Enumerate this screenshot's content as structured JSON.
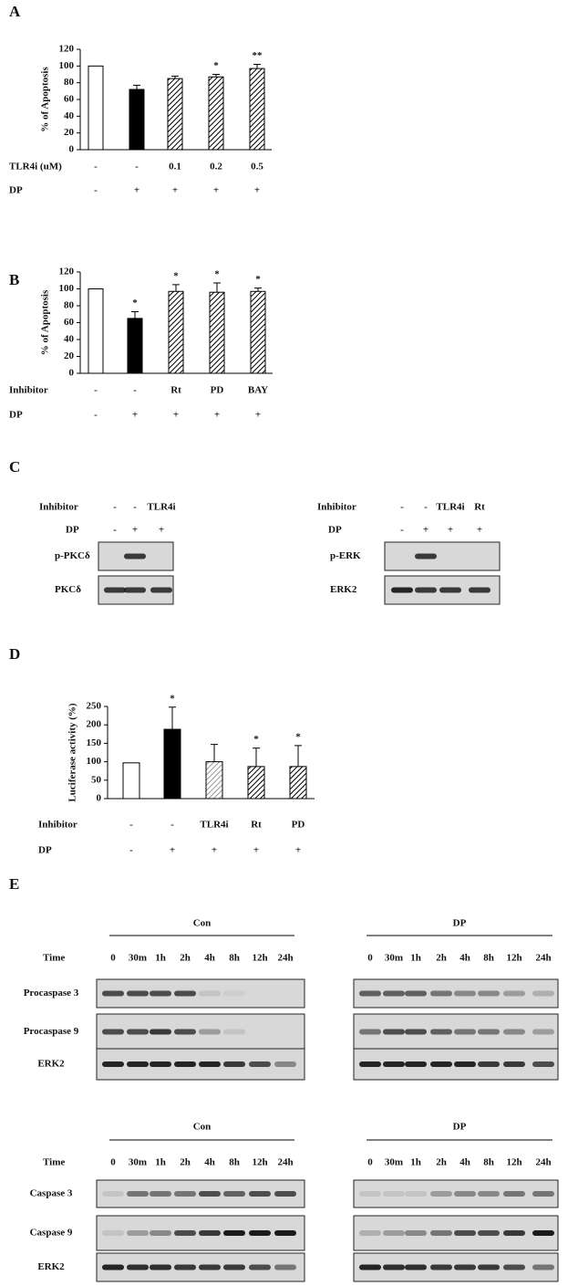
{
  "panels": [
    "A",
    "B",
    "C",
    "D",
    "E"
  ],
  "chart_data": [
    {
      "type": "bar",
      "ylabel": "% of Apoptosis",
      "values": [
        100,
        72,
        85,
        87,
        97
      ],
      "errors": [
        null,
        5,
        3,
        3,
        5
      ],
      "significance": [
        null,
        null,
        null,
        "*",
        "**"
      ],
      "fills": [
        "white",
        "black",
        "hatch",
        "hatch",
        "hatch"
      ],
      "ylim": [
        0,
        120
      ],
      "yticks": [
        0,
        20,
        40,
        60,
        80,
        100,
        120
      ],
      "rows": [
        {
          "name": "TLR4i (uM)",
          "labels": [
            "-",
            "-",
            "0.1",
            "0.2",
            "0.5"
          ]
        },
        {
          "name": "DP",
          "labels": [
            "-",
            "+",
            "+",
            "+",
            "+"
          ]
        }
      ]
    },
    {
      "type": "bar",
      "ylabel": "% of Apoptosis",
      "values": [
        100,
        65,
        97,
        96,
        97
      ],
      "errors": [
        null,
        8,
        8,
        11,
        4
      ],
      "significance": [
        null,
        "*",
        "*",
        "*",
        "*"
      ],
      "fills": [
        "white",
        "black",
        "hatch",
        "hatch",
        "hatch"
      ],
      "ylim": [
        0,
        120
      ],
      "yticks": [
        0,
        20,
        40,
        60,
        80,
        100,
        120
      ],
      "rows": [
        {
          "name": "Inhibitor",
          "labels": [
            "-",
            "-",
            "Rt",
            "PD",
            "BAY"
          ]
        },
        {
          "name": "DP",
          "labels": [
            "-",
            "+",
            "+",
            "+",
            "+"
          ]
        }
      ]
    },
    {
      "type": "bar",
      "ylabel": "Luciferase activity (%)",
      "values": [
        97,
        188,
        100,
        87,
        87
      ],
      "errors": [
        null,
        60,
        47,
        50,
        57
      ],
      "significance": [
        null,
        "*",
        null,
        "*",
        "*"
      ],
      "fills": [
        "white",
        "black",
        "hatch-light",
        "hatch",
        "hatch"
      ],
      "ylim": [
        0,
        250
      ],
      "yticks": [
        0,
        50,
        100,
        150,
        200,
        250
      ],
      "rows": [
        {
          "name": "Inhibitor",
          "labels": [
            "-",
            "-",
            "TLR4i",
            "Rt",
            "PD"
          ]
        },
        {
          "name": "DP",
          "labels": [
            "-",
            "+",
            "+",
            "+",
            "+"
          ]
        }
      ]
    }
  ],
  "blot_c": [
    {
      "rows": [
        {
          "name": "Inhibitor",
          "labels": [
            "-",
            "-",
            "TLR4i"
          ]
        },
        {
          "name": "DP",
          "labels": [
            "-",
            "+",
            "+"
          ]
        }
      ],
      "blots": [
        "p-PKCδ",
        "PKCδ"
      ]
    },
    {
      "rows": [
        {
          "name": "Inhibitor",
          "labels": [
            "-",
            "-",
            "TLR4i",
            "Rt"
          ]
        },
        {
          "name": "DP",
          "labels": [
            "-",
            "+",
            "+",
            "+"
          ]
        }
      ],
      "blots": [
        "p-ERK",
        "ERK2"
      ]
    }
  ],
  "blot_e": {
    "groups": [
      "Con",
      "DP"
    ],
    "time_label": "Time",
    "times": [
      "0",
      "30m",
      "1h",
      "2h",
      "4h",
      "8h",
      "12h",
      "24h"
    ],
    "sections": [
      {
        "blots": [
          "Procaspase 3",
          "Procaspase 9",
          "ERK2"
        ]
      },
      {
        "blots": [
          "Caspase 3",
          "Caspase 9",
          "ERK2"
        ]
      }
    ]
  }
}
